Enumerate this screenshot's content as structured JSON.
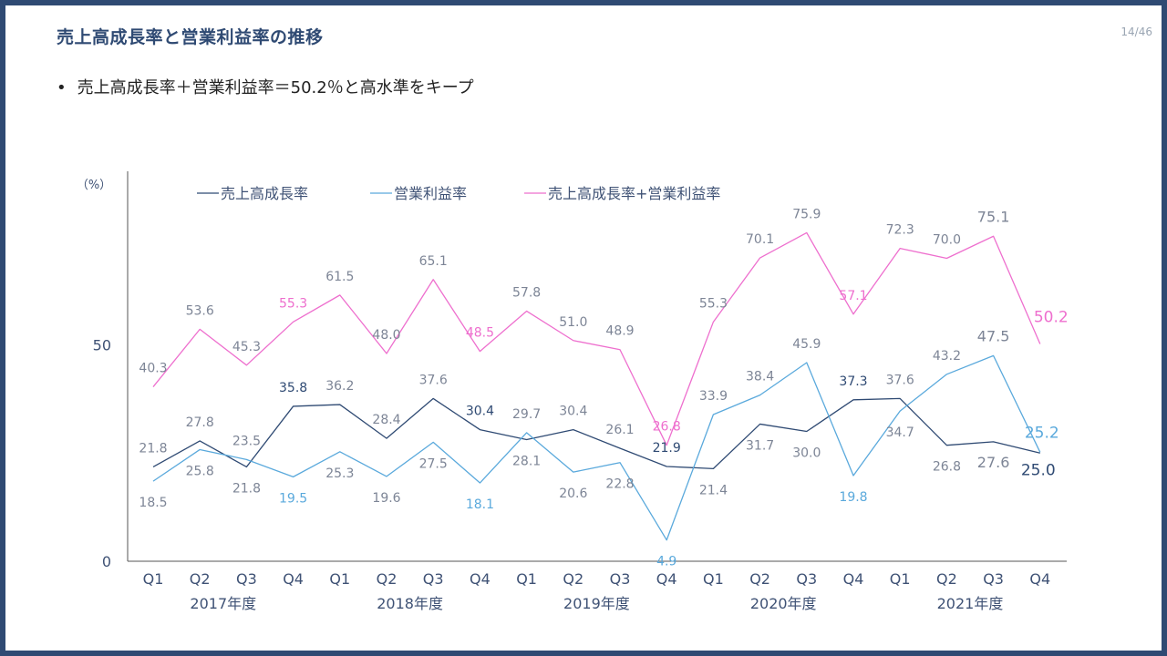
{
  "title": "売上高成長率と営業利益率の推移",
  "page_number": "14/46",
  "bullet": "売上高成長率＋営業利益率＝50.2％と高水準をキープ",
  "colors": {
    "border": "#2f4a73",
    "title": "#2f4a73",
    "growth": "#2f4a73",
    "margin": "#5aa9dc",
    "sum": "#ee6fce",
    "axis_text": "#3f5275",
    "label_gray": "#7d8596"
  },
  "chart_data": {
    "type": "line",
    "ylabel": "（%）",
    "ylim": [
      0,
      80
    ],
    "yticks": [
      0,
      50
    ],
    "categories": [
      "Q1",
      "Q2",
      "Q3",
      "Q4",
      "Q1",
      "Q2",
      "Q3",
      "Q4",
      "Q1",
      "Q2",
      "Q3",
      "Q4",
      "Q1",
      "Q2",
      "Q3",
      "Q4",
      "Q1",
      "Q2",
      "Q3",
      "Q4"
    ],
    "groups": [
      {
        "label": "2017年度",
        "start": 0,
        "end": 3
      },
      {
        "label": "2018年度",
        "start": 4,
        "end": 7
      },
      {
        "label": "2019年度",
        "start": 8,
        "end": 11
      },
      {
        "label": "2020年度",
        "start": 12,
        "end": 15
      },
      {
        "label": "2021年度",
        "start": 16,
        "end": 19
      }
    ],
    "legend_position": "top",
    "series": [
      {
        "name": "売上高成長率",
        "key": "growth",
        "values": [
          21.8,
          27.8,
          21.8,
          35.8,
          36.2,
          28.4,
          37.6,
          30.4,
          28.1,
          30.4,
          26.1,
          21.9,
          21.4,
          31.7,
          30.0,
          37.3,
          37.6,
          26.8,
          27.6,
          25.0
        ],
        "highlight": [
          3,
          7,
          11,
          15,
          19
        ]
      },
      {
        "name": "営業利益率",
        "key": "margin",
        "values": [
          18.5,
          25.8,
          23.5,
          19.5,
          25.3,
          19.6,
          27.5,
          18.1,
          29.7,
          20.6,
          22.8,
          4.9,
          33.9,
          38.4,
          45.9,
          19.8,
          34.7,
          43.2,
          47.5,
          25.2
        ],
        "highlight": [
          3,
          7,
          11,
          15,
          19
        ]
      },
      {
        "name": "売上高成長率+営業利益率",
        "key": "sum",
        "values": [
          40.3,
          53.6,
          45.3,
          55.3,
          61.5,
          48.0,
          65.1,
          48.5,
          57.8,
          51.0,
          48.9,
          26.8,
          55.3,
          70.1,
          75.9,
          57.1,
          72.3,
          70.0,
          75.1,
          50.2
        ],
        "highlight": [
          3,
          7,
          11,
          15,
          19
        ]
      }
    ]
  }
}
